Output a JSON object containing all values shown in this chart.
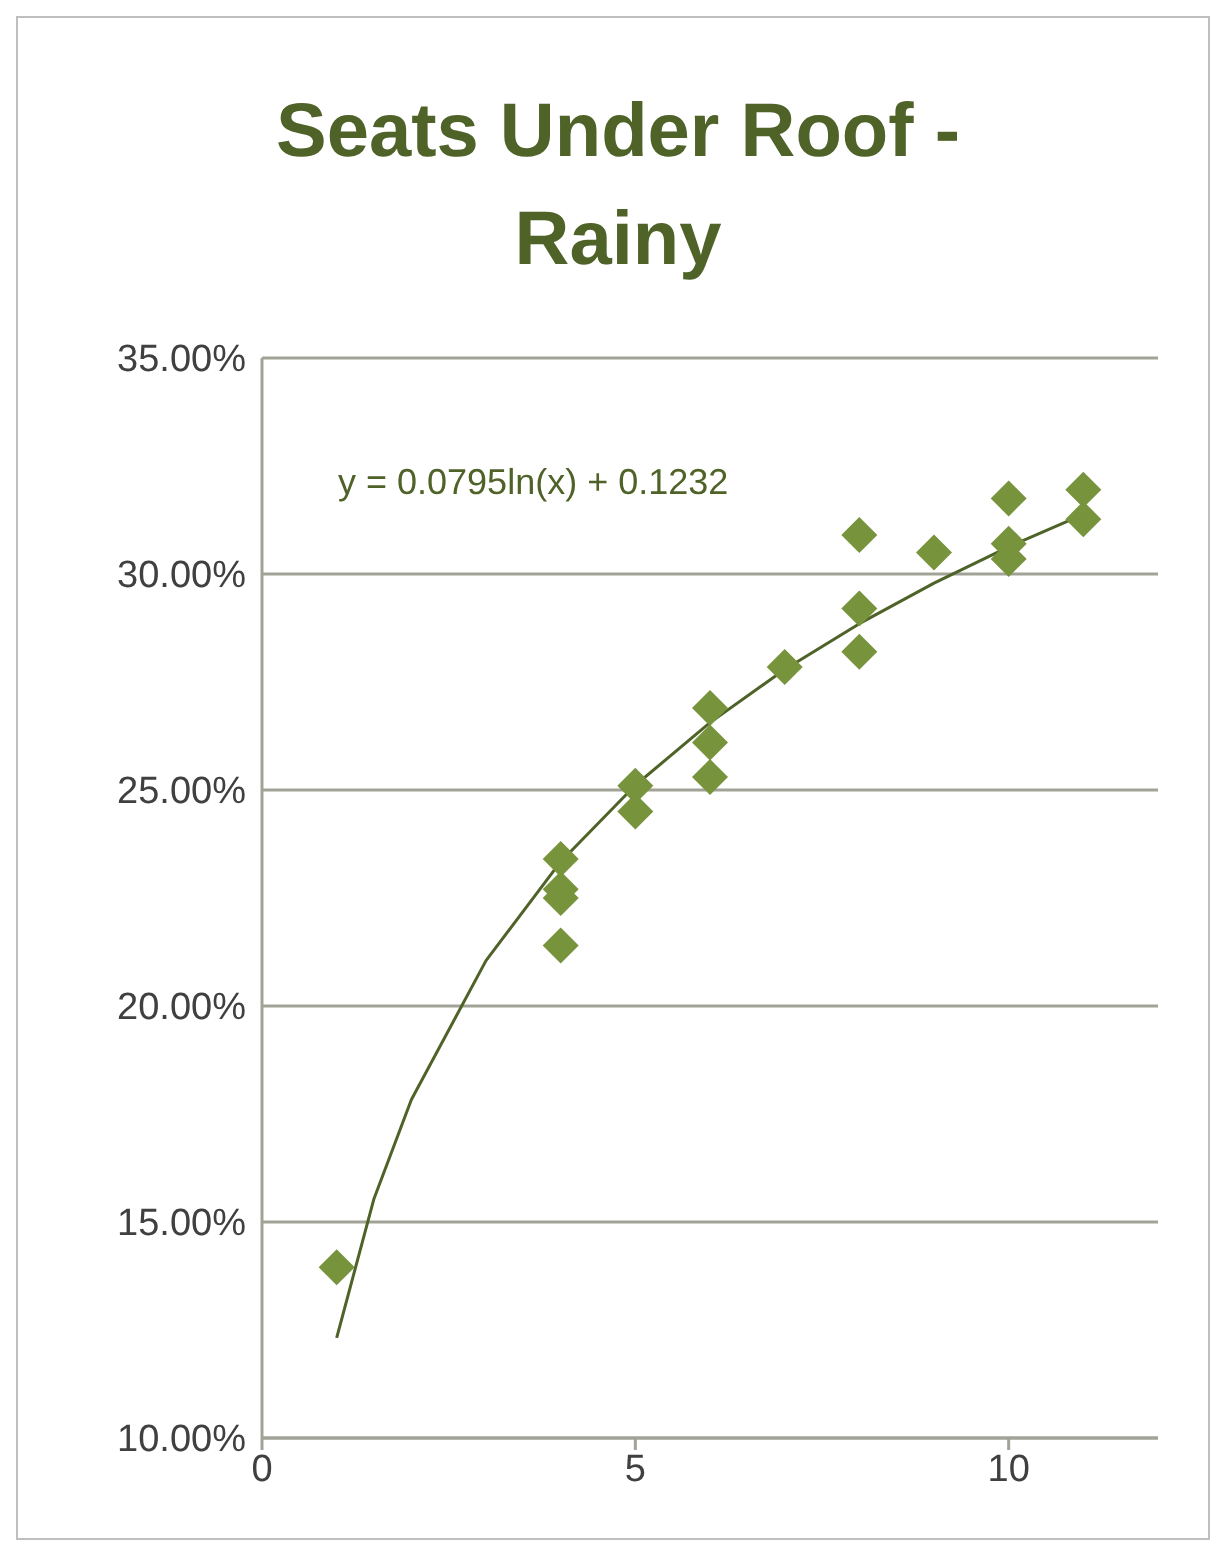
{
  "chart_data": {
    "type": "scatter",
    "title": "Seats Under Roof - Rainy",
    "marker": "diamond",
    "grid": "y",
    "xlim": [
      0,
      12
    ],
    "xticks": [
      0,
      5,
      10
    ],
    "ylim": [
      10,
      35
    ],
    "yticks": [
      {
        "value": 10,
        "label": "10.00%"
      },
      {
        "value": 15,
        "label": "15.00%"
      },
      {
        "value": 20,
        "label": "20.00%"
      },
      {
        "value": 25,
        "label": "25.00%"
      },
      {
        "value": 30,
        "label": "30.00%"
      },
      {
        "value": 35,
        "label": "35.00%"
      }
    ],
    "annotations": [
      "y = 0.0795ln(x) + 0.1232"
    ],
    "series": [
      {
        "color": "#77933c",
        "x": [
          1,
          4,
          4,
          4,
          4,
          5,
          5,
          6,
          6,
          6,
          7,
          8,
          8,
          8,
          9,
          10,
          10,
          10,
          11,
          11
        ],
        "values": [
          13.95,
          23.4,
          22.7,
          22.5,
          21.4,
          25.1,
          24.5,
          26.9,
          26.1,
          25.3,
          27.85,
          30.9,
          29.2,
          28.2,
          30.5,
          31.75,
          30.7,
          30.35,
          31.95,
          31.27
        ]
      },
      {
        "type": "line",
        "color": "#4f6228",
        "marker": "none",
        "x": [
          1,
          1.5,
          2,
          3,
          4,
          5,
          6,
          7,
          8,
          9,
          10,
          11
        ],
        "values": [
          12.32,
          15.54,
          17.83,
          21.05,
          23.34,
          25.11,
          26.56,
          27.79,
          28.85,
          29.79,
          30.63,
          31.38
        ]
      }
    ]
  }
}
